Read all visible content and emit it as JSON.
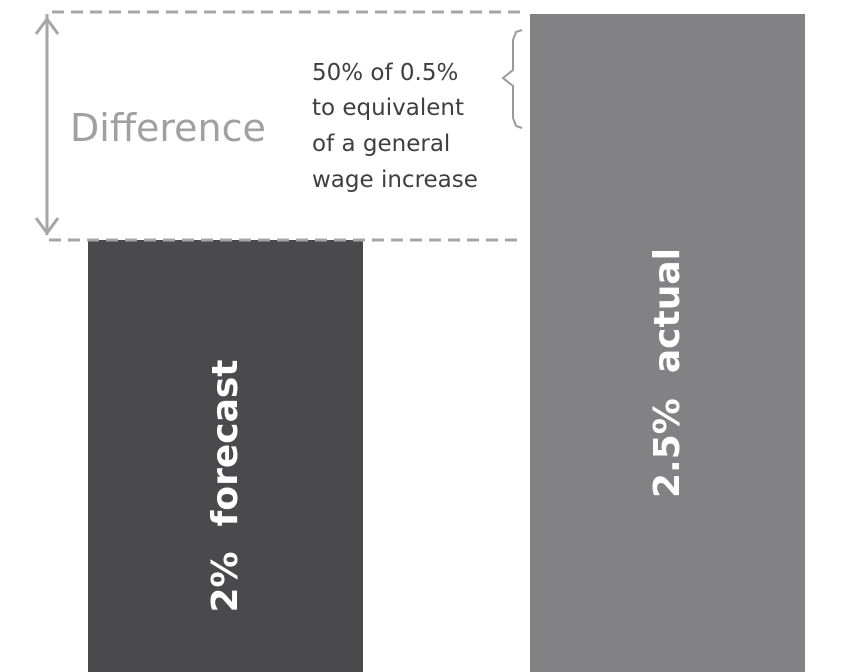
{
  "chart_data": {
    "type": "bar",
    "categories": [
      "2%  forecast",
      "2.5%  actual"
    ],
    "values": [
      2.0,
      2.5
    ],
    "colors": [
      "#4a4a4c",
      "#828284"
    ],
    "bar_label_color": "#ffffff",
    "annotation": {
      "label": "Difference",
      "note_lines": [
        "50%  of 0.5%",
        "to equivalent",
        "of a general",
        "wage increase"
      ],
      "line_color": "#a6a6a6",
      "label_color": "#a0a0a0",
      "note_color": "#3f3f3f"
    }
  }
}
